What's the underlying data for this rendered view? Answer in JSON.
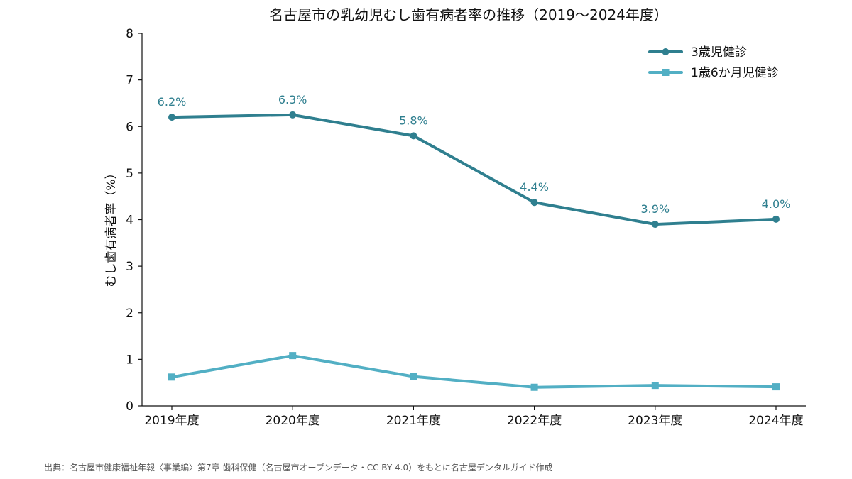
{
  "chart_data": {
    "type": "line",
    "title": "名古屋市の乳幼児むし歯有病者率の推移（2019〜2024年度）",
    "xlabel": "",
    "ylabel": "むし歯有病者率（%）",
    "categories": [
      "2019年度",
      "2020年度",
      "2021年度",
      "2022年度",
      "2023年度",
      "2024年度"
    ],
    "ylim": [
      0,
      8
    ],
    "yticks": [
      "0",
      "1",
      "2",
      "3",
      "4",
      "5",
      "6",
      "7",
      "8"
    ],
    "grid": false,
    "legend_position": "top-right",
    "series": [
      {
        "name": "3歳児健診",
        "values": [
          6.2,
          6.25,
          5.8,
          4.37,
          3.9,
          4.01
        ],
        "labels": [
          "6.2%",
          "6.3%",
          "5.8%",
          "4.4%",
          "3.9%",
          "4.0%"
        ],
        "color": "#2f7f8f",
        "marker": "circle"
      },
      {
        "name": "1歳6か月児健診",
        "values": [
          0.62,
          1.08,
          0.63,
          0.4,
          0.44,
          0.41
        ],
        "color": "#52afc4",
        "marker": "square"
      }
    ]
  },
  "footer": {
    "source": "出典：名古屋市健康福祉年報〈事業編〉第7章 歯科保健（名古屋市オープンデータ・CC BY 4.0）をもとに名古屋デンタルガイド作成"
  }
}
